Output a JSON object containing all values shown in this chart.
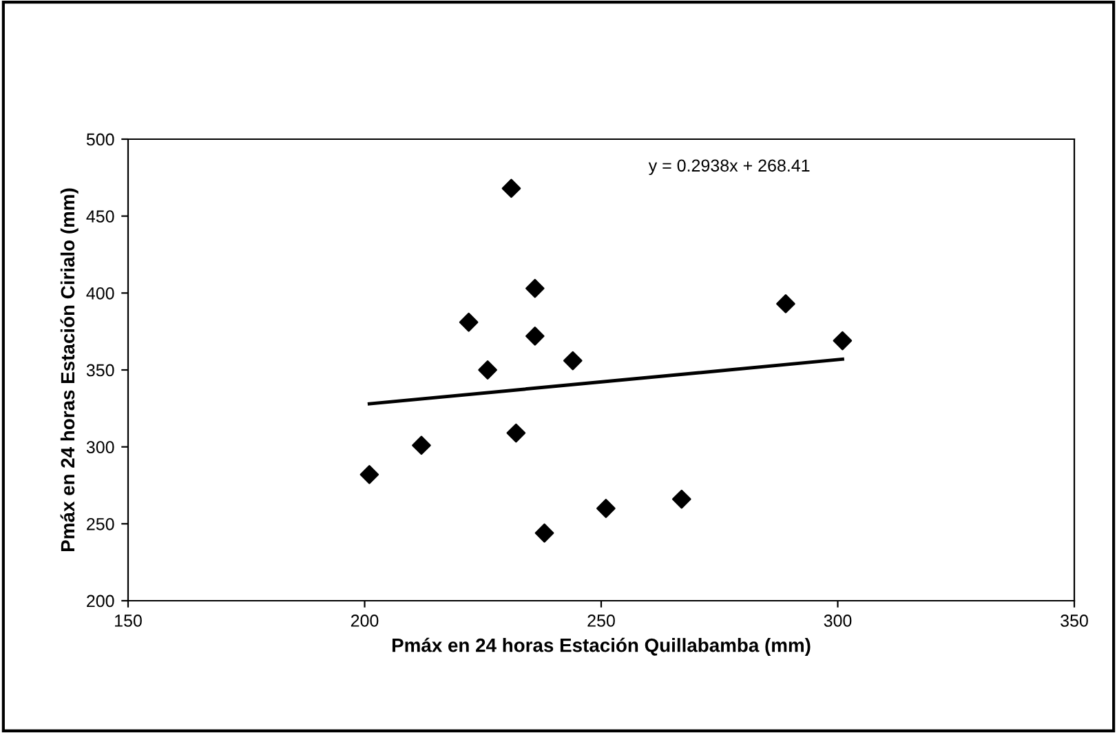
{
  "chart_data": {
    "type": "scatter",
    "xlabel": "Pmáx en 24 horas Estación Quillabamba (mm)",
    "ylabel": "Pmáx en 24 horas Estación Cirialo (mm)",
    "annotations": [
      "y = 0.2938x + 268.41"
    ],
    "xlim": [
      150,
      350
    ],
    "ylim": [
      200,
      500
    ],
    "xticks": [
      150,
      200,
      250,
      300,
      350
    ],
    "yticks": [
      200,
      250,
      300,
      350,
      400,
      450,
      500
    ],
    "grid": false,
    "legend": false,
    "marker": "diamond",
    "series": [
      {
        "color": "#000000",
        "x": [
          201,
          212,
          222,
          226,
          231,
          232,
          236,
          236,
          238,
          244,
          251,
          267,
          289,
          301
        ],
        "values": [
          282,
          301,
          381,
          350,
          468,
          309,
          403,
          372,
          244,
          356,
          260,
          266,
          393,
          369
        ]
      },
      {
        "type": "line",
        "color": "#000000",
        "x": [
          201,
          301
        ],
        "values": [
          328,
          357
        ],
        "marker": "none",
        "line_style": "solid"
      }
    ]
  }
}
